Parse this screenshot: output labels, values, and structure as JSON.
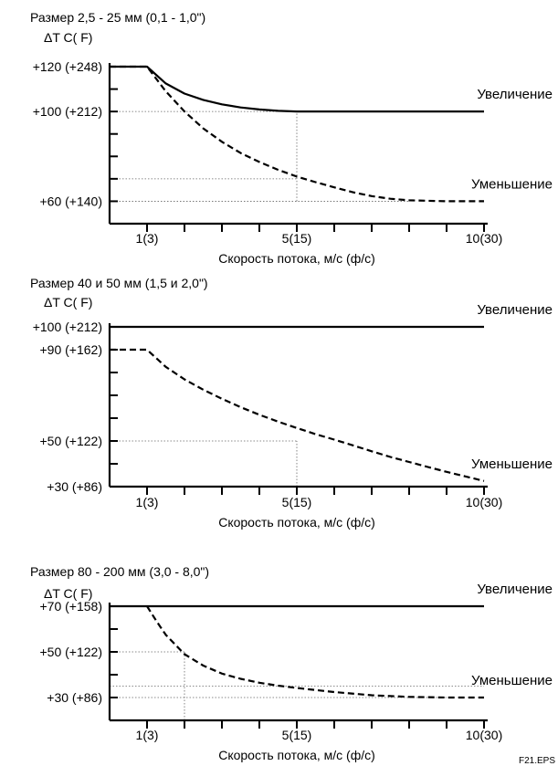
{
  "figure_label": "F21.EPS",
  "chart_data": [
    {
      "type": "line",
      "title": "Размер 2,5 - 25 мм (0,1 - 1,0\")",
      "ylabel": "ΔT C( F)",
      "xlabel": "Скорость потока, м/с (ф/с)",
      "xlim": [
        0,
        10
      ],
      "ylim": [
        50,
        120
      ],
      "xticks": [
        0,
        1,
        2,
        3,
        4,
        5,
        6,
        7,
        8,
        9,
        10
      ],
      "xtick_labels": [
        {
          "x": 1,
          "label": "1(3)"
        },
        {
          "x": 5,
          "label": "5(15)"
        },
        {
          "x": 10,
          "label": "10(30)"
        }
      ],
      "ytick_labels": [
        {
          "y": 120,
          "label": "+120 (+248)"
        },
        {
          "y": 100,
          "label": "+100 (+212)"
        },
        {
          "y": 60,
          "label": "+60 (+140)"
        }
      ],
      "minor_yticks": [
        110,
        90,
        80,
        70
      ],
      "series": [
        {
          "name": "Увеличение",
          "style": "solid",
          "x": [
            0,
            1,
            1.5,
            2,
            2.5,
            3,
            3.5,
            4,
            4.5,
            5,
            5.5,
            6,
            7,
            8,
            9,
            10
          ],
          "y": [
            120,
            120,
            112.5,
            108,
            105.2,
            103.2,
            101.8,
            100.9,
            100.3,
            100,
            100,
            100,
            100,
            100,
            100,
            100
          ]
        },
        {
          "name": "Уменьшение",
          "style": "dashed",
          "x": [
            0,
            1,
            1.5,
            2,
            2.5,
            3,
            3.5,
            4,
            4.5,
            5,
            5.5,
            6,
            6.5,
            7,
            7.5,
            8,
            9,
            10
          ],
          "y": [
            120,
            120,
            109,
            100,
            92.5,
            86.5,
            81.5,
            77.5,
            74,
            71,
            68.5,
            66.2,
            64,
            62.3,
            61.1,
            60.4,
            60,
            60
          ]
        }
      ],
      "reference_lines": [
        {
          "y": 100,
          "from_x": 0,
          "to_x": 5
        },
        {
          "x": 5,
          "from_y": 60,
          "to_y": 100
        },
        {
          "y": 70,
          "from_x": 0,
          "to_x": 5
        },
        {
          "y": 60,
          "from_x": 0,
          "to_x": 8
        }
      ]
    },
    {
      "type": "line",
      "title": "Размер 40 и 50 мм (1,5 и 2,0\")",
      "ylabel": "ΔT C( F)",
      "xlabel": "Скорость потока, м/с (ф/с)",
      "xlim": [
        0,
        10
      ],
      "ylim": [
        30,
        100
      ],
      "xticks": [
        0,
        1,
        2,
        3,
        4,
        5,
        6,
        7,
        8,
        9,
        10
      ],
      "xtick_labels": [
        {
          "x": 1,
          "label": "1(3)"
        },
        {
          "x": 5,
          "label": "5(15)"
        },
        {
          "x": 10,
          "label": "10(30)"
        }
      ],
      "ytick_labels": [
        {
          "y": 100,
          "label": "+100 (+212)"
        },
        {
          "y": 90,
          "label": "+90 (+162)"
        },
        {
          "y": 50,
          "label": "+50 (+122)"
        },
        {
          "y": 30,
          "label": "+30 (+86)"
        }
      ],
      "minor_yticks": [
        80,
        70,
        60,
        40
      ],
      "series": [
        {
          "name": "Увеличение",
          "style": "solid",
          "x": [
            0,
            10
          ],
          "y": [
            100,
            100
          ]
        },
        {
          "name": "Уменьшение",
          "style": "dashed",
          "x": [
            0,
            1,
            1.5,
            2,
            2.5,
            3,
            3.5,
            4,
            4.5,
            5,
            5.5,
            6,
            6.5,
            7,
            7.5,
            8,
            8.5,
            9,
            9.5,
            10
          ],
          "y": [
            90,
            90,
            82.5,
            77,
            72.5,
            68.5,
            64.8,
            61.5,
            58.5,
            55.7,
            53,
            50.6,
            48.1,
            45.5,
            43,
            40.8,
            38.6,
            36.5,
            34.5,
            32.5
          ]
        }
      ],
      "reference_lines": [
        {
          "y": 50,
          "from_x": 0,
          "to_x": 5
        },
        {
          "x": 5,
          "from_y": 30,
          "to_y": 50
        }
      ]
    },
    {
      "type": "line",
      "title": "Размер 80 - 200 мм (3,0 - 8,0\")",
      "ylabel": "ΔT C( F)",
      "xlabel": "Скорость потока, м/с (ф/с)",
      "xlim": [
        0,
        10
      ],
      "ylim": [
        20,
        70
      ],
      "xticks": [
        0,
        1,
        2,
        3,
        4,
        5,
        6,
        7,
        8,
        9,
        10
      ],
      "xtick_labels": [
        {
          "x": 1,
          "label": "1(3)"
        },
        {
          "x": 5,
          "label": "5(15)"
        },
        {
          "x": 10,
          "label": "10(30)"
        }
      ],
      "ytick_labels": [
        {
          "y": 70,
          "label": "+70 (+158)"
        },
        {
          "y": 50,
          "label": "+50 (+122)"
        },
        {
          "y": 30,
          "label": "+30 (+86)"
        }
      ],
      "minor_yticks": [
        60,
        40
      ],
      "series": [
        {
          "name": "Увеличение",
          "style": "solid",
          "x": [
            0,
            10
          ],
          "y": [
            70,
            70
          ]
        },
        {
          "name": "Уменьшение",
          "style": "dashed",
          "x": [
            1,
            1.25,
            1.5,
            2,
            2.5,
            3,
            3.5,
            4,
            4.5,
            5,
            5.5,
            6,
            7,
            8,
            9,
            10
          ],
          "y": [
            70,
            63.5,
            57.5,
            49,
            44,
            40.5,
            38.2,
            36.5,
            35.2,
            34.2,
            33.3,
            32.4,
            31,
            30.3,
            30,
            30
          ]
        }
      ],
      "reference_lines": [
        {
          "y": 50,
          "from_x": 0,
          "to_x": 2
        },
        {
          "x": 2,
          "from_y": 20,
          "to_y": 50
        },
        {
          "y": 35,
          "from_x": 0,
          "to_x": 10
        },
        {
          "y": 30,
          "from_x": 0,
          "to_x": 9
        }
      ]
    }
  ]
}
